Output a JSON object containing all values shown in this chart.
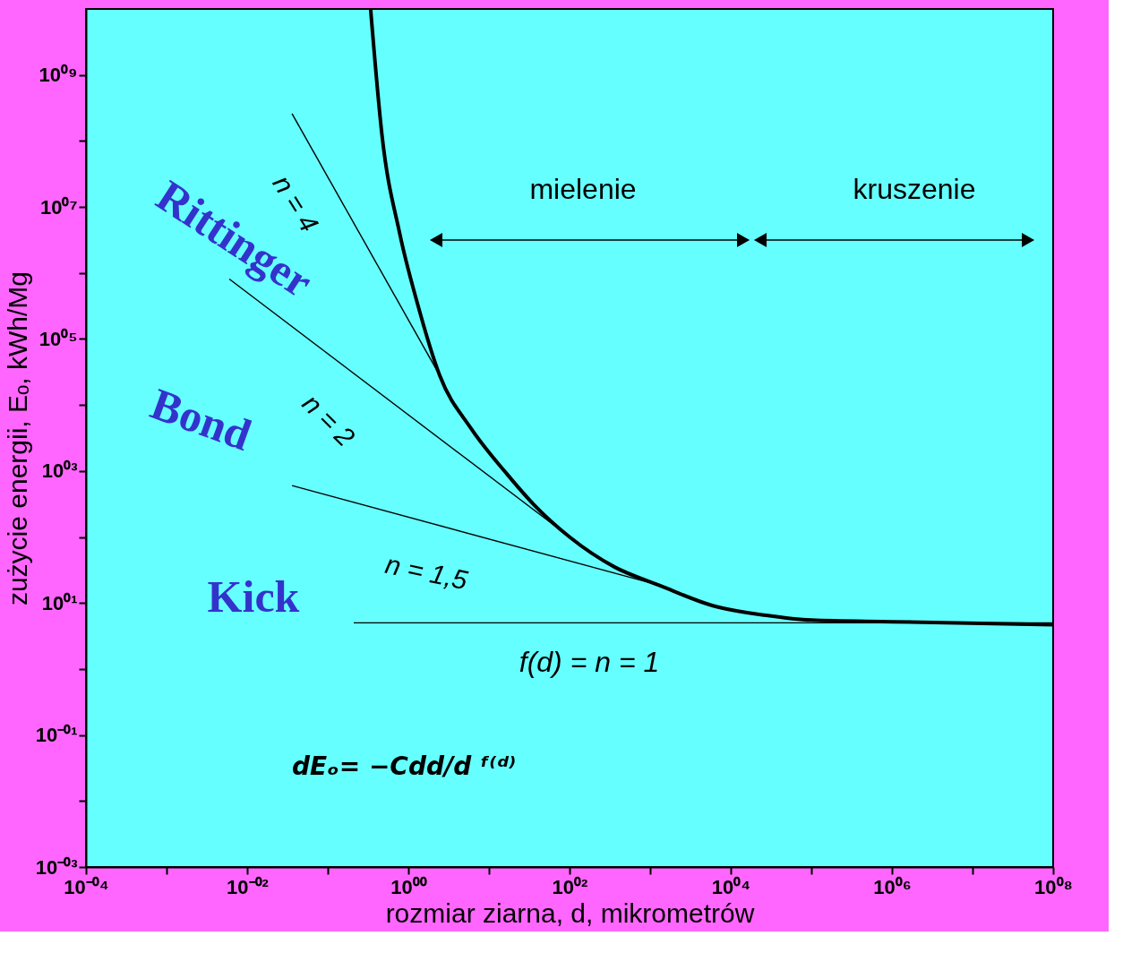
{
  "chart_data": {
    "type": "line",
    "xlabel": "rozmiar ziarna,  d, mikrometrów",
    "ylabel": "zużycie energii, Eₒ, kWh/Mg",
    "xlim": [
      0.0001,
      100000000
    ],
    "ylim": [
      0.001,
      10000000000
    ],
    "xticks": [
      {
        "value": 0.0001,
        "label": "10⁻⁰⁴"
      },
      {
        "value": 0.001,
        "label": null
      },
      {
        "value": 0.01,
        "label": "10⁻⁰²"
      },
      {
        "value": 0.1,
        "label": null
      },
      {
        "value": 1,
        "label": "10⁰⁰"
      },
      {
        "value": 10,
        "label": null
      },
      {
        "value": 100,
        "label": "10⁰²"
      },
      {
        "value": 1000,
        "label": null
      },
      {
        "value": 10000,
        "label": "10⁰⁴"
      },
      {
        "value": 100000,
        "label": null
      },
      {
        "value": 1000000,
        "label": "10⁰⁶"
      },
      {
        "value": 10000000,
        "label": null
      },
      {
        "value": 100000000,
        "label": "10⁰⁸"
      }
    ],
    "yticks": [
      {
        "value": 0.001,
        "label": "10⁻⁰³"
      },
      {
        "value": 0.01,
        "label": null
      },
      {
        "value": 0.1,
        "label": "10⁻⁰¹"
      },
      {
        "value": 1,
        "label": null
      },
      {
        "value": 10,
        "label": "10⁰¹"
      },
      {
        "value": 100,
        "label": null
      },
      {
        "value": 1000,
        "label": "10⁰³"
      },
      {
        "value": 10000,
        "label": null
      },
      {
        "value": 100000,
        "label": "10⁰⁵"
      },
      {
        "value": 1000000,
        "label": null
      },
      {
        "value": 10000000,
        "label": "10⁰⁷"
      },
      {
        "value": 100000000,
        "label": null
      },
      {
        "value": 1000000000,
        "label": "10⁰⁹"
      }
    ],
    "log": "xy",
    "grid": false,
    "legend": false,
    "marker": "none",
    "line_style": "solid",
    "series": [
      {
        "color": "#000000",
        "x": [
          0.34,
          0.47,
          0.78,
          1.3,
          2.45,
          6,
          16.6,
          36,
          100,
          363,
          1290,
          6000,
          27500,
          100000,
          1000000,
          100000000
        ],
        "values": [
          10000000000,
          125000000,
          4000000,
          340000,
          28000,
          4400,
          910,
          310,
          100,
          35,
          18.6,
          9.1,
          6.5,
          5.5,
          5.2,
          4.7
        ]
      },
      {
        "color": "#000000",
        "x": [
          0.036,
          2.45
        ],
        "values": [
          260000000,
          28000
        ]
      },
      {
        "color": "#000000",
        "x": [
          0.006,
          100
        ],
        "values": [
          810000,
          100
        ]
      },
      {
        "color": "#000000",
        "x": [
          0.036,
          1290
        ],
        "values": [
          600,
          18.6
        ]
      },
      {
        "color": "#000000",
        "x": [
          0.21,
          100000000
        ],
        "values": [
          5,
          5
        ]
      }
    ],
    "annotations": [
      "Rittinger",
      "n = 4",
      "Bond",
      "n = 2",
      "n = 1,5",
      "Kick",
      "f(d) = n = 1",
      "dEₒ= −Cdd/d ᶠ⁽ᵈ⁾",
      "mielenie",
      "kruszenie"
    ]
  }
}
